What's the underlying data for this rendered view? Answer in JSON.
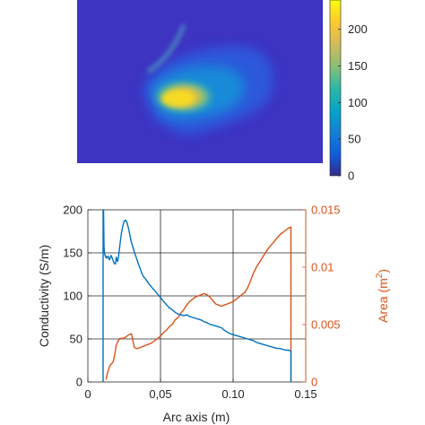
{
  "colorbar": {
    "ticks": [
      "0",
      "50",
      "100",
      "150",
      "200"
    ],
    "tick_values": [
      0,
      50,
      100,
      150,
      200
    ],
    "range": [
      0,
      240
    ],
    "colormap": "parula"
  },
  "chart_data": {
    "type": "line",
    "xlabel": "Arc axis (m)",
    "ylabel_left": "Conductivity (S/m)",
    "ylabel_right": "Area (m",
    "ylabel_right_superscript": "2",
    "ylabel_right_suffix": ")",
    "xlim": [
      0,
      0.15
    ],
    "ylim_left": [
      0,
      200
    ],
    "ylim_right": [
      0,
      0.015
    ],
    "x_ticks": [
      0,
      0.05,
      0.1,
      0.15
    ],
    "x_tick_labels": [
      "0",
      "0,05",
      "0.10",
      "0.15"
    ],
    "y_left_ticks": [
      0,
      50,
      100,
      150,
      200
    ],
    "y_left_tick_labels": [
      "0",
      "50",
      "100",
      "150",
      "200"
    ],
    "y_right_ticks": [
      0,
      0.005,
      0.01,
      0.015
    ],
    "y_right_tick_labels": [
      "0",
      "0.005",
      "0.01",
      "0.015"
    ],
    "grid": true,
    "colors": {
      "conductivity": "#0072BD",
      "area": "#D95319"
    },
    "series": [
      {
        "axis": "left",
        "color": "#0072BD",
        "x": [
          0.0105,
          0.0105,
          0.0108,
          0.0111,
          0.0113,
          0.0116,
          0.0119,
          0.0122,
          0.0125,
          0.013,
          0.0135,
          0.014,
          0.0145,
          0.015,
          0.0155,
          0.016,
          0.017,
          0.018,
          0.019,
          0.0195,
          0.0205,
          0.021,
          0.022,
          0.023,
          0.024,
          0.025,
          0.026,
          0.027,
          0.028,
          0.029,
          0.03,
          0.031,
          0.032,
          0.033,
          0.034,
          0.035,
          0.036,
          0.037,
          0.038,
          0.04,
          0.042,
          0.044,
          0.046,
          0.048,
          0.05,
          0.052,
          0.054,
          0.056,
          0.058,
          0.06,
          0.062,
          0.064,
          0.066,
          0.068,
          0.07,
          0.072,
          0.074,
          0.076,
          0.078,
          0.08,
          0.082,
          0.084,
          0.086,
          0.088,
          0.09,
          0.092,
          0.094,
          0.096,
          0.098,
          0.1,
          0.102,
          0.104,
          0.106,
          0.108,
          0.11,
          0.112,
          0.114,
          0.116,
          0.118,
          0.12,
          0.122,
          0.124,
          0.126,
          0.128,
          0.13,
          0.132,
          0.134,
          0.136,
          0.138,
          0.1398,
          0.1398
        ],
        "y": [
          0,
          200,
          200,
          158,
          153,
          148,
          147,
          145,
          146,
          144,
          145,
          146,
          143,
          142,
          145,
          147,
          143,
          138,
          137,
          145,
          140,
          144,
          158,
          172,
          181,
          187,
          188,
          185,
          178,
          170,
          162,
          157,
          151,
          146,
          141,
          136,
          132,
          127,
          123,
          119,
          114,
          110,
          106,
          102,
          98,
          94,
          90,
          86,
          84,
          81,
          79,
          78,
          77,
          78,
          76,
          75,
          74,
          73,
          72,
          70,
          69,
          67,
          66,
          65,
          64,
          63,
          60,
          58,
          56,
          55,
          54,
          53,
          52,
          51,
          50,
          49,
          48,
          46,
          45,
          44,
          43,
          42,
          41,
          40,
          39,
          39,
          38,
          37,
          37,
          36,
          0
        ]
      },
      {
        "axis": "right",
        "color": "#D95319",
        "x": [
          0.0125,
          0.0135,
          0.0145,
          0.0155,
          0.0165,
          0.0175,
          0.0185,
          0.0195,
          0.0205,
          0.022,
          0.024,
          0.026,
          0.028,
          0.03,
          0.032,
          0.034,
          0.036,
          0.038,
          0.04,
          0.042,
          0.044,
          0.046,
          0.048,
          0.05,
          0.052,
          0.054,
          0.056,
          0.058,
          0.06,
          0.062,
          0.064,
          0.066,
          0.068,
          0.07,
          0.072,
          0.074,
          0.076,
          0.078,
          0.08,
          0.082,
          0.084,
          0.086,
          0.088,
          0.09,
          0.092,
          0.094,
          0.096,
          0.098,
          0.1,
          0.102,
          0.104,
          0.106,
          0.108,
          0.11,
          0.112,
          0.114,
          0.116,
          0.118,
          0.12,
          0.122,
          0.124,
          0.126,
          0.128,
          0.13,
          0.132,
          0.134,
          0.136,
          0.138,
          0.1398,
          0.1398
        ],
        "y": [
          0.0002,
          0.0008,
          0.0012,
          0.0015,
          0.0016,
          0.0018,
          0.0024,
          0.0032,
          0.0035,
          0.0038,
          0.0038,
          0.0039,
          0.0041,
          0.0042,
          0.003,
          0.0029,
          0.003,
          0.0031,
          0.0032,
          0.0033,
          0.0034,
          0.0036,
          0.0038,
          0.004,
          0.0043,
          0.0045,
          0.0048,
          0.005,
          0.0054,
          0.0056,
          0.006,
          0.0063,
          0.0067,
          0.007,
          0.0072,
          0.0074,
          0.0075,
          0.0076,
          0.0077,
          0.0076,
          0.0074,
          0.0071,
          0.0068,
          0.0067,
          0.0066,
          0.0067,
          0.0068,
          0.0069,
          0.007,
          0.0072,
          0.0074,
          0.0076,
          0.0078,
          0.0082,
          0.0088,
          0.0095,
          0.01,
          0.0104,
          0.0108,
          0.0112,
          0.0116,
          0.0119,
          0.0122,
          0.0125,
          0.0128,
          0.013,
          0.0132,
          0.0134,
          0.0135,
          0.0
        ]
      }
    ]
  }
}
